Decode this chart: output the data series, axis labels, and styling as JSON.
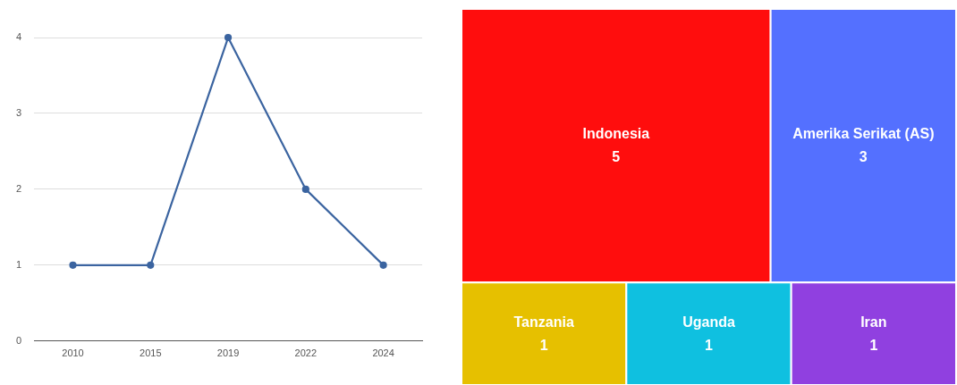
{
  "chart_data": [
    {
      "type": "line",
      "categories": [
        "2010",
        "2015",
        "2019",
        "2022",
        "2024"
      ],
      "series": [
        {
          "color": "#3b64a0",
          "values": [
            1,
            1,
            4,
            2,
            1
          ]
        }
      ],
      "ylim": [
        0,
        4
      ],
      "yticks": [
        0,
        1,
        2,
        3,
        4
      ],
      "grid": "y",
      "legend": false,
      "marker": "circle",
      "line_style": "solid"
    },
    {
      "type": "other",
      "categories": [
        "Indonesia",
        "Amerika Serikat (AS)",
        "Tanzania",
        "Uganda",
        "Iran"
      ],
      "values": [
        5,
        3,
        1,
        1,
        1
      ],
      "colors": [
        "#ff0d0d",
        "#5470ff",
        "#e6c000",
        "#0fc0e0",
        "#9040e0"
      ],
      "data_labels": true
    }
  ]
}
